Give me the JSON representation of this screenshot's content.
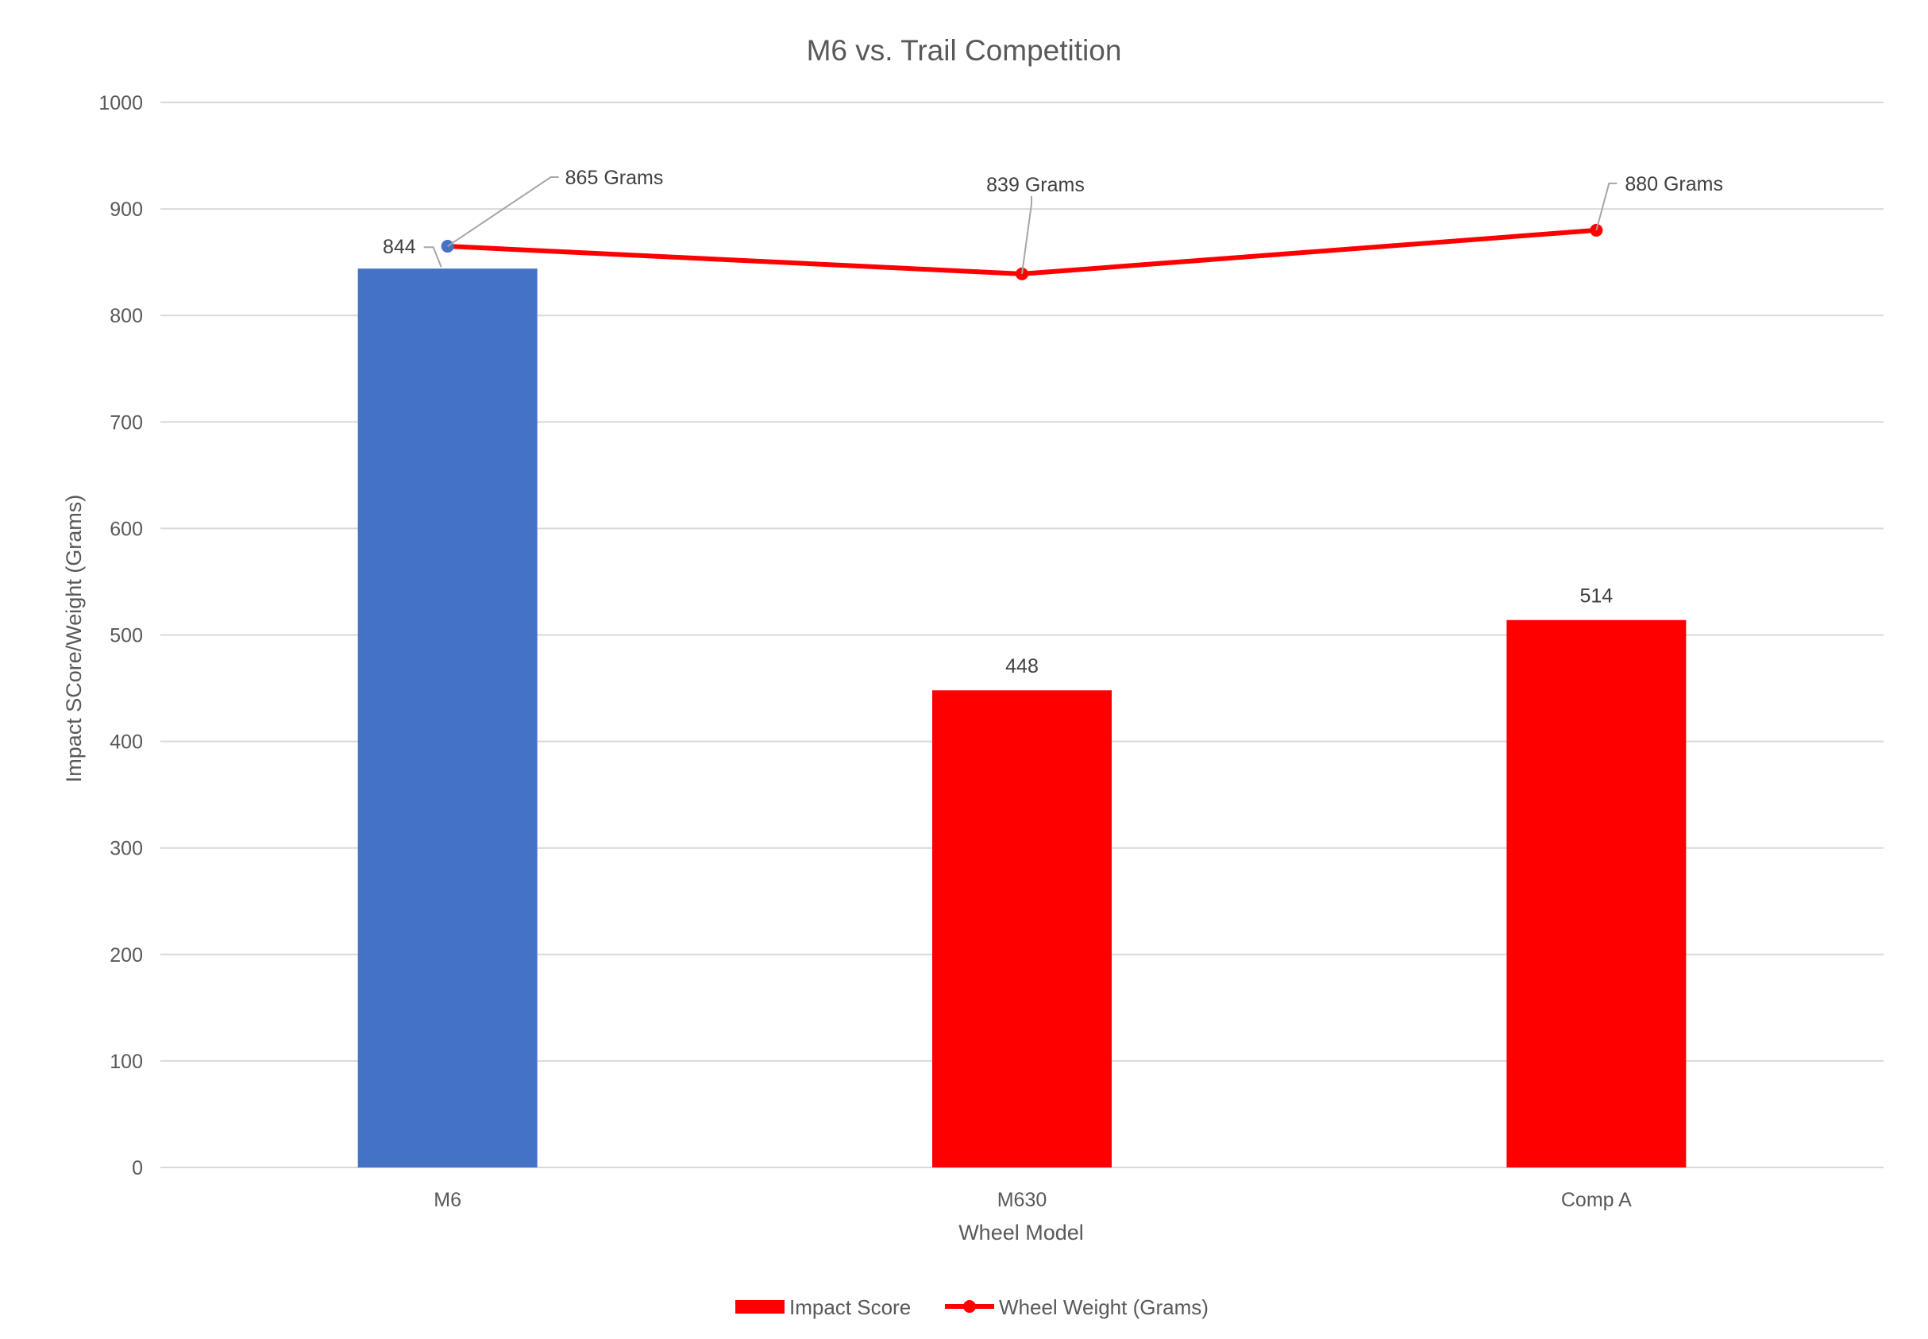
{
  "chart_data": {
    "type": "bar",
    "title": "M6 vs. Trail Competition",
    "xlabel": "Wheel Model",
    "ylabel": "Impact SCore/Weight (Grams)",
    "categories": [
      "M6",
      "M630",
      "Comp A"
    ],
    "ylim": [
      0,
      1000
    ],
    "yticks": [
      "0",
      "100",
      "200",
      "300",
      "400",
      "500",
      "600",
      "700",
      "800",
      "900",
      "1000"
    ],
    "grid": true,
    "legend_position": "bottom",
    "series": [
      {
        "name": "Impact Score",
        "type": "bar",
        "values": [
          844,
          448,
          514
        ],
        "data_labels": [
          "844",
          "448",
          "514"
        ],
        "colors": [
          "#4472C4",
          "#FF0000",
          "#FF0000"
        ]
      },
      {
        "name": "Wheel Weight (Grams)",
        "type": "line",
        "values": [
          865,
          839,
          880
        ],
        "data_labels": [
          "865 Grams",
          "839 Grams",
          "880 Grams"
        ],
        "color": "#FF0000",
        "marker_colors": [
          "#4472C4",
          "#FF0000",
          "#FF0000"
        ]
      }
    ]
  }
}
